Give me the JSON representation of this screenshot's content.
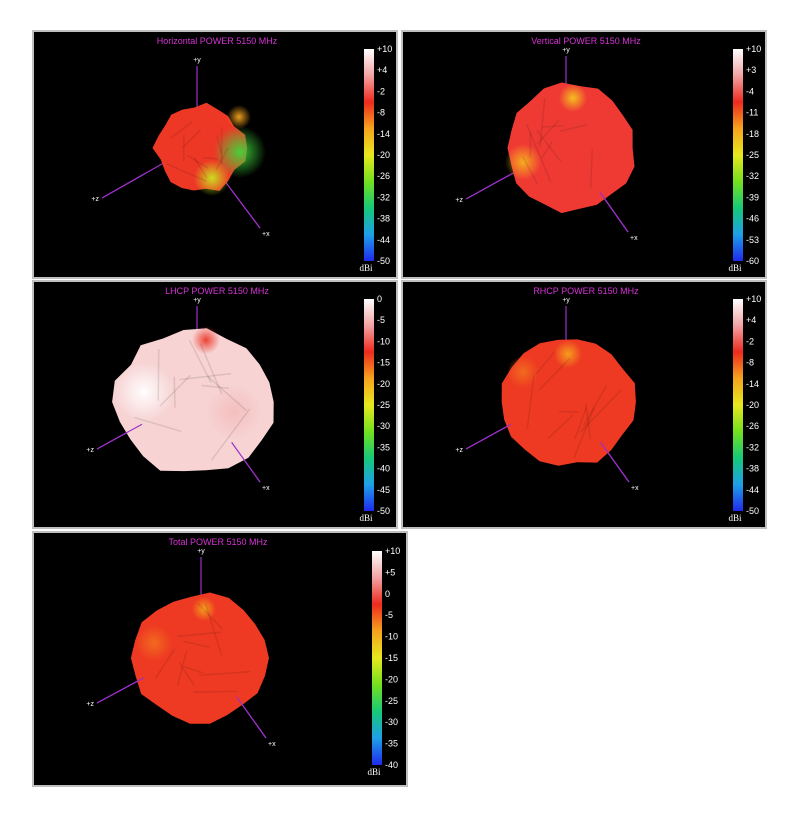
{
  "chart_data": [
    {
      "type": "3d-radiation-pattern",
      "title": "Horizontal POWER 5150  MHz",
      "axes": {
        "y": "+y",
        "z": "+z",
        "x": "+x"
      },
      "colorbar": {
        "unit": "dBi",
        "ticks": [
          "+10",
          "+4",
          "-2",
          "-8",
          "-14",
          "-20",
          "-26",
          "-32",
          "-38",
          "-44",
          "-50"
        ],
        "range": [
          -50,
          10
        ]
      }
    },
    {
      "type": "3d-radiation-pattern",
      "title": "Vertical POWER 5150  MHz",
      "axes": {
        "y": "+y",
        "z": "+z",
        "x": "+x"
      },
      "colorbar": {
        "unit": "dBi",
        "ticks": [
          "+10",
          "+3",
          "-4",
          "-11",
          "-18",
          "-25",
          "-32",
          "-39",
          "-46",
          "-53",
          "-60"
        ],
        "range": [
          -60,
          10
        ]
      }
    },
    {
      "type": "3d-radiation-pattern",
      "title": "LHCP POWER 5150  MHz",
      "axes": {
        "y": "+y",
        "z": "+z",
        "x": "+x"
      },
      "colorbar": {
        "unit": "dBi",
        "ticks": [
          "0",
          "-5",
          "-10",
          "-15",
          "-20",
          "-25",
          "-30",
          "-35",
          "-40",
          "-45",
          "-50"
        ],
        "range": [
          -50,
          0
        ]
      }
    },
    {
      "type": "3d-radiation-pattern",
      "title": "RHCP POWER 5150  MHz",
      "axes": {
        "y": "+y",
        "z": "+z",
        "x": "+x"
      },
      "colorbar": {
        "unit": "dBi",
        "ticks": [
          "+10",
          "+4",
          "-2",
          "-8",
          "-14",
          "-20",
          "-26",
          "-32",
          "-38",
          "-44",
          "-50"
        ],
        "range": [
          -50,
          10
        ]
      }
    },
    {
      "type": "3d-radiation-pattern",
      "title": "Total POWER 5150  MHz",
      "axes": {
        "y": "+y",
        "z": "+z",
        "x": "+x"
      },
      "colorbar": {
        "unit": "dBi",
        "ticks": [
          "+10",
          "+5",
          "0",
          "-5",
          "-10",
          "-15",
          "-20",
          "-25",
          "-30",
          "-35",
          "-40"
        ],
        "range": [
          -40,
          10
        ]
      }
    }
  ],
  "colors": {
    "title": "#d633d6",
    "axis": "#9b30c8",
    "tick_text": "#ffffff",
    "gradient": [
      "#ffffff",
      "#f2a3a3",
      "#ee2a1e",
      "#f6a31e",
      "#e8e81e",
      "#74e01e",
      "#16c978",
      "#1ea0e8",
      "#1e2aee"
    ]
  }
}
